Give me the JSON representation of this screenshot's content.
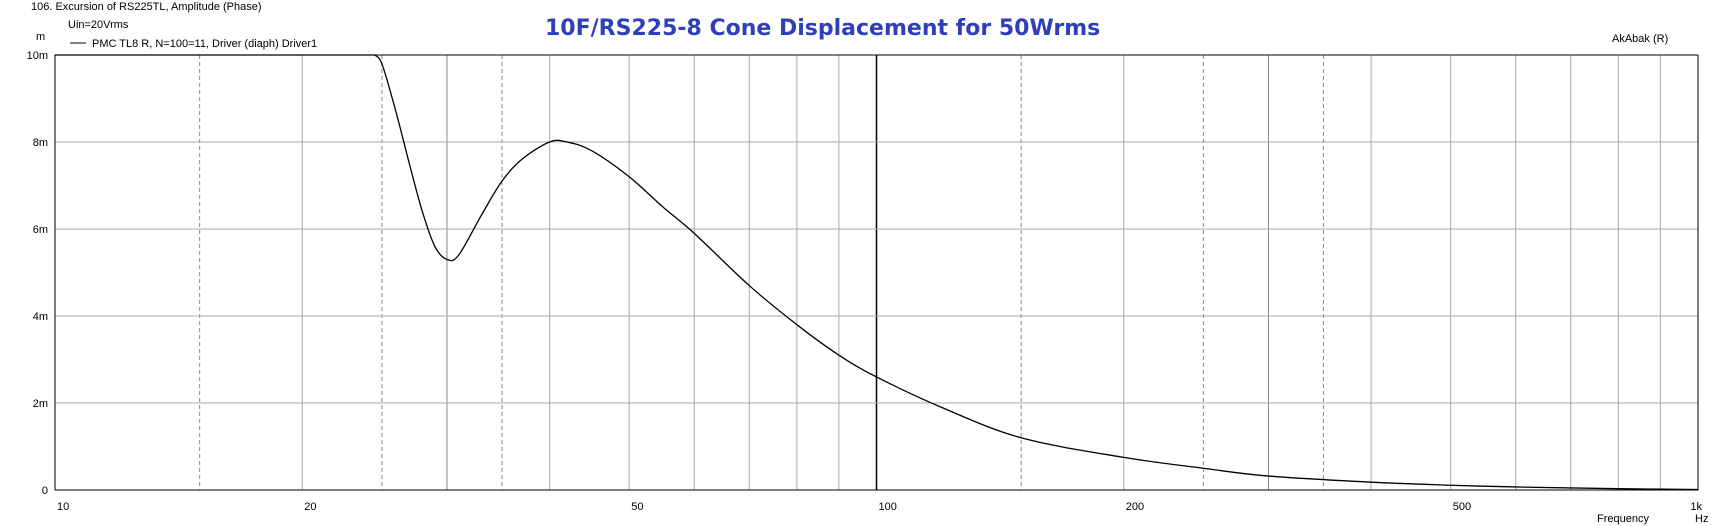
{
  "header": {
    "window_title": "106. Excursion of RS225TL, Amplitude (Phase)",
    "condition": "Uin=20Vrms",
    "software_label": "AkAbak (R)"
  },
  "chart_data": {
    "type": "line",
    "title": "10F/RS225-8  Cone Displacement for 50Wrms",
    "ylabel": "m",
    "xlabel": "Frequency",
    "xunit": "Hz",
    "x_scale": "log",
    "xlim": [
      10,
      1000
    ],
    "ylim": [
      0,
      0.01
    ],
    "grid": true,
    "legend_position": "top-left",
    "line_color": "#000000",
    "title_color": "#2f3fb7",
    "x_ticks": [
      {
        "value": 10,
        "label": "10"
      },
      {
        "value": 20,
        "label": "20"
      },
      {
        "value": 50,
        "label": "50"
      },
      {
        "value": 100,
        "label": "100"
      },
      {
        "value": 200,
        "label": "200"
      },
      {
        "value": 500,
        "label": "500"
      },
      {
        "value": 1000,
        "label": "1k"
      }
    ],
    "y_ticks": [
      {
        "value": 0,
        "label": "0"
      },
      {
        "value": 0.002,
        "label": "2m"
      },
      {
        "value": 0.004,
        "label": "4m"
      },
      {
        "value": 0.006,
        "label": "6m"
      },
      {
        "value": 0.008,
        "label": "8m"
      },
      {
        "value": 0.01,
        "label": "10m"
      }
    ],
    "series": [
      {
        "name": "PMC TL8 R, N=100=11, Driver (diaph) Driver1",
        "x": [
          24.5,
          25,
          26,
          27,
          28,
          29,
          30,
          31,
          33,
          35,
          37,
          40,
          42,
          45,
          50,
          55,
          60,
          70,
          80,
          90,
          100,
          120,
          150,
          200,
          250,
          300,
          400,
          500,
          600,
          800,
          1000
        ],
        "y": [
          0.0101,
          0.0098,
          0.0087,
          0.0075,
          0.0064,
          0.0056,
          0.0053,
          0.0054,
          0.0063,
          0.0071,
          0.0076,
          0.008,
          0.008,
          0.0078,
          0.0072,
          0.0065,
          0.0059,
          0.0047,
          0.0038,
          0.0031,
          0.0026,
          0.0019,
          0.0012,
          0.00075,
          0.0005,
          0.00032,
          0.00018,
          0.00011,
          7e-05,
          3e-05,
          1e-05
        ]
      }
    ]
  }
}
